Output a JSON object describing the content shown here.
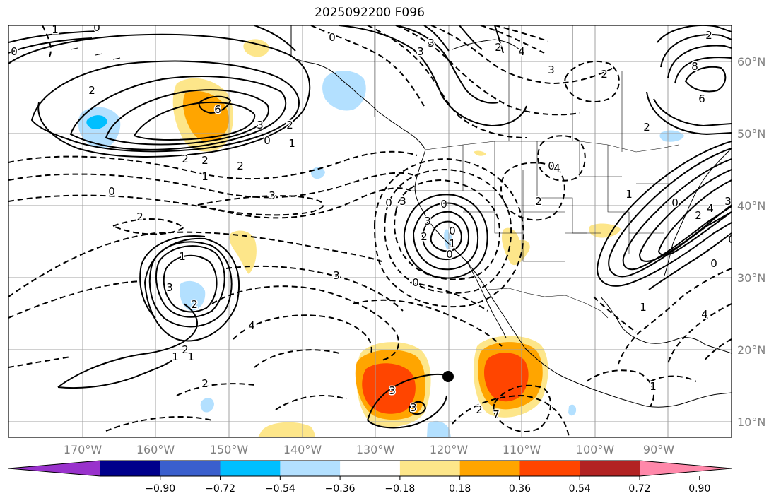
{
  "title": "2025092200 F096",
  "map": {
    "lon_labels": [
      "170°W",
      "160°W",
      "150°W",
      "140°W",
      "130°W",
      "120°W",
      "110°W",
      "100°W",
      "90°W"
    ],
    "lat_labels": [
      "60°N",
      "50°N",
      "40°N",
      "30°N",
      "20°N",
      "10°N"
    ],
    "contour_labels": [
      "1",
      "0",
      "0",
      "2",
      "6",
      "3",
      "2",
      "0",
      "1",
      "2",
      "2",
      "2",
      "1",
      "0",
      "3",
      "2",
      "3",
      "0",
      "3",
      "0",
      "2",
      "0",
      "1",
      "3",
      "2",
      "4",
      "3",
      "0",
      "1",
      "2",
      "1",
      "2",
      "3",
      "3",
      "2",
      "4",
      "3",
      "2",
      "4",
      "8",
      "6",
      "2",
      "2",
      "1",
      "0",
      "2",
      "4",
      "3",
      "0",
      "0",
      "1",
      "4",
      "3",
      "3",
      "2",
      "7",
      "1",
      "0",
      "0",
      "2",
      "0",
      "1",
      "2"
    ],
    "colors": {
      "land_line": "#000000",
      "contour": "#000000",
      "grid": "#a0a0a0",
      "pos_1": "#fde68a",
      "pos_2": "#ffa500",
      "pos_3": "#ff4500",
      "neg_1": "#b3e0ff",
      "neg_2": "#00bfff"
    }
  },
  "colorbar": {
    "ticks": [
      "−0.90",
      "−0.72",
      "−0.54",
      "−0.36",
      "−0.18",
      "0.18",
      "0.36",
      "0.54",
      "0.72",
      "0.90"
    ],
    "colors": [
      "#9932cc",
      "#00008b",
      "#3a5fcd",
      "#00bfff",
      "#b3e0ff",
      "#ffffff",
      "#fde68a",
      "#ffa500",
      "#ff4500",
      "#b22222",
      "#ff88aa"
    ]
  }
}
